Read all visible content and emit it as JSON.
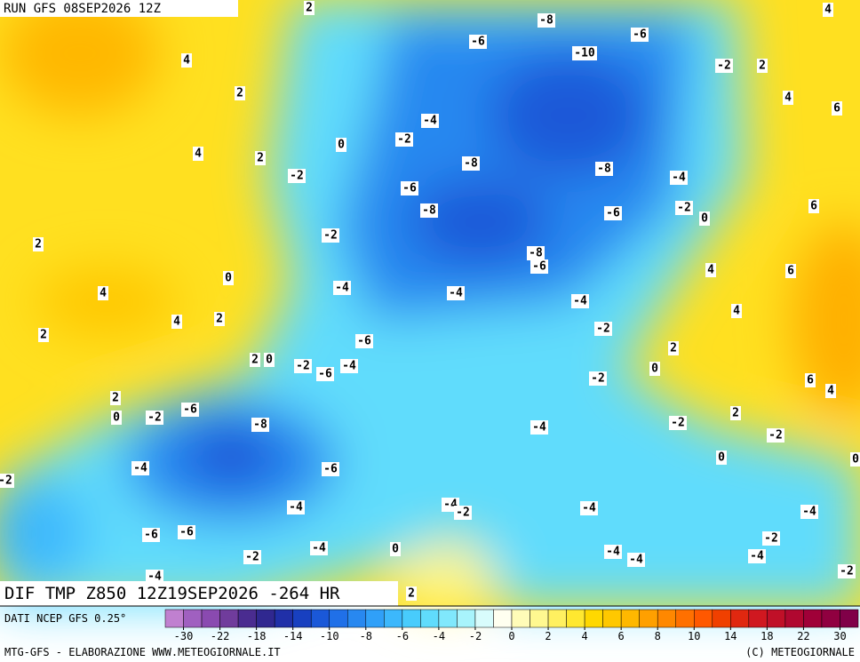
{
  "header": {
    "run": "RUN GFS 08SEP2026 12Z"
  },
  "footer": {
    "field": "DIF TMP Z850 12Z19SEP2026 -264 HR",
    "source": "DATI NCEP GFS 0.25°",
    "credit": "MTG-GFS - ELABORAZIONE WWW.METEOGIORNALE.IT",
    "copyright": "(C) METEOGIORNALE"
  },
  "colorbar": {
    "ticks": [
      -30,
      -22,
      -18,
      -14,
      -10,
      -8,
      -6,
      -4,
      -2,
      0,
      2,
      4,
      6,
      8,
      10,
      14,
      18,
      22,
      30
    ],
    "colors": [
      "#c080d0",
      "#a060c0",
      "#8a4ab0",
      "#703c9c",
      "#4a2c90",
      "#302890",
      "#2030a8",
      "#1840c0",
      "#1a58d8",
      "#2070e8",
      "#2888f0",
      "#30a0f8",
      "#3cb8fc",
      "#48ccfc",
      "#60dcfc",
      "#80e8fc",
      "#a8f4fc",
      "#d8fcfc",
      "#fffff0",
      "#fffcb8",
      "#fff890",
      "#fff060",
      "#ffe830",
      "#ffd800",
      "#ffc800",
      "#ffb800",
      "#ffa000",
      "#ff8800",
      "#ff7000",
      "#ff5800",
      "#f04000",
      "#e02810",
      "#d01820",
      "#c01028",
      "#b00830",
      "#a00038",
      "#900040",
      "#800048"
    ]
  },
  "map": {
    "labels": [
      "2",
      "4",
      "-8",
      "-6",
      "-6",
      "-10",
      "4",
      "-2",
      "2",
      "2",
      "4",
      "6",
      "-4",
      "-2",
      "0",
      "4",
      "2",
      "-8",
      "-8",
      "-2",
      "-4",
      "-6",
      "-8",
      "-6",
      "-2",
      "0",
      "6",
      "2",
      "-2",
      "-8",
      "-6",
      "6",
      "4",
      "0",
      "-4",
      "-4",
      "4",
      "-4",
      "4",
      "4",
      "2",
      "-2",
      "2",
      "-6",
      "2",
      "2",
      "0",
      "-2",
      "-4",
      "-6",
      "0",
      "-2",
      "6",
      "4",
      "2",
      "0",
      "-6",
      "-2",
      "-8",
      "-4",
      "-2",
      "2",
      "-2",
      "0",
      "0",
      "-4",
      "-6",
      "-2",
      "-4",
      "-4",
      "-2",
      "-4",
      "-4",
      "-6",
      "-6",
      "-2",
      "-4",
      "0",
      "-4",
      "-4",
      "-4",
      "-2",
      "-4",
      "-2",
      "2"
    ]
  }
}
